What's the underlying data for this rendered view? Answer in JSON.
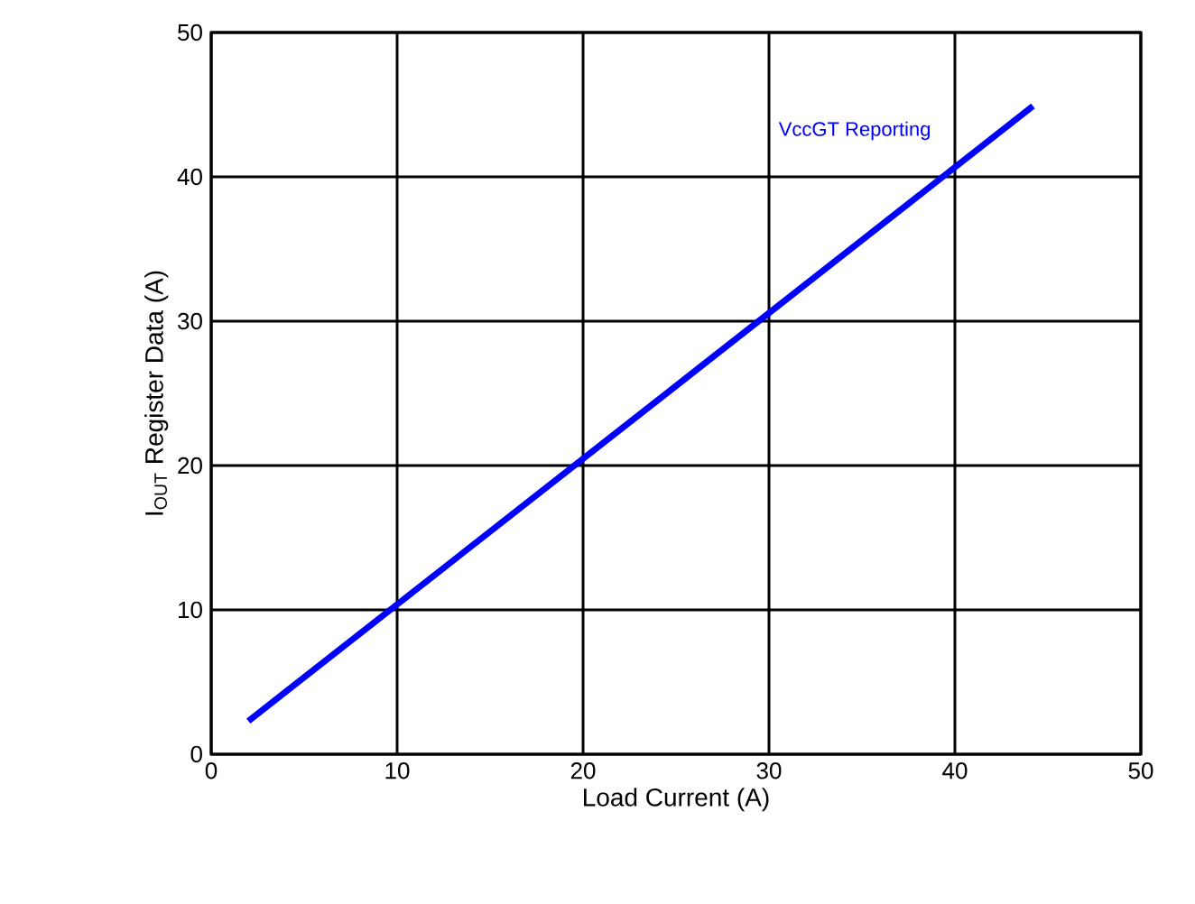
{
  "chart_data": {
    "type": "line",
    "xlabel": "Load Current (A)",
    "ylabel": "I$_{OUT}$ Register Data (A)",
    "x": [
      2,
      44.2
    ],
    "series": [
      {
        "name": "VccGT Reporting",
        "color": "#0000ff",
        "values": [
          2.3,
          44.9
        ]
      }
    ],
    "xlim": [
      0,
      50
    ],
    "ylim": [
      0,
      50
    ],
    "xticks": [
      0,
      10,
      20,
      30,
      40,
      50
    ],
    "yticks": [
      0,
      10,
      20,
      30,
      40,
      50
    ],
    "grid": true,
    "marker": "none",
    "line_style": "solid"
  }
}
